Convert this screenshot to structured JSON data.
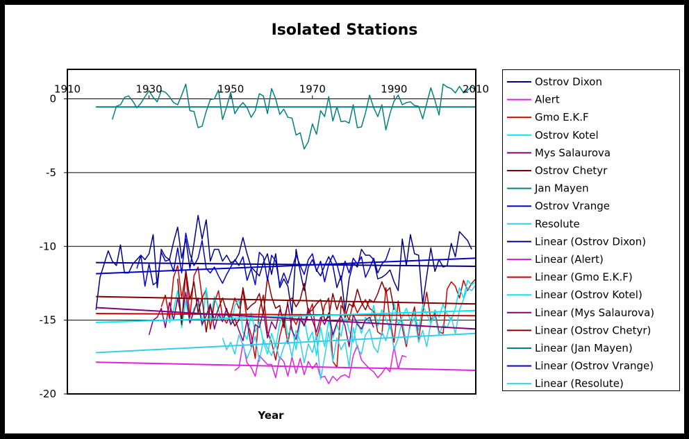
{
  "chart_data": {
    "type": "line",
    "title": "Isolated Stations",
    "xlabel": "Year",
    "ylabel": "",
    "xlim": [
      1910,
      2010
    ],
    "ylim": [
      -20,
      2
    ],
    "x_ticks": [
      1910,
      1930,
      1950,
      1970,
      1990,
      2010
    ],
    "x_tick_labels": [
      "1910",
      "1930",
      "1950",
      "1970",
      "1990",
      "2010"
    ],
    "y_ticks": [
      0,
      -5,
      -10,
      -15,
      -20
    ],
    "y_tick_labels": [
      "0",
      "-5",
      "-10",
      "-15",
      "-20"
    ],
    "grid": "horizontal",
    "legend_position": "right",
    "trend_x": [
      1917,
      2010
    ],
    "series": [
      {
        "name": "Ostrov Dixon",
        "color": "#000080",
        "start": 1917,
        "values": [
          -14.3,
          -12.1,
          -11.2,
          -10.3,
          -11.0,
          -11.3,
          -9.9,
          -11.8,
          -11.8,
          -11.2,
          -10.9,
          -10.6,
          -10.9,
          -10.5,
          -9.2,
          -12.8,
          -10.2,
          -10.7,
          -10.9,
          -9.7,
          -8.7,
          -10.8,
          -9.5,
          -11.5,
          -9.8,
          -7.9,
          -9.5,
          -8.2,
          -11.0,
          -10.2,
          -10.2,
          -11.0,
          -10.6,
          -11.1,
          -11.0,
          -10.5,
          -9.4,
          -10.5,
          -11.4,
          -11.7,
          -12.0,
          -11.1,
          -10.5,
          -11.9,
          -10.5,
          -12.8,
          -12.2,
          -12.7,
          -14.6,
          -10.2,
          -11.7,
          -13.0,
          -11.4,
          -10.9,
          -11.6,
          -12.0,
          -11.3,
          -10.7,
          -11.3,
          -12.8,
          -12.0,
          -14.4,
          -12.2,
          -11.1,
          -11.4,
          -10.2,
          -10.6,
          -10.6,
          -10.9,
          -12.2,
          -12.1,
          -11.9,
          -11.6,
          -12.4,
          -13.0,
          -9.5,
          -11.3,
          -9.2,
          -10.5,
          -10.6,
          -13.9,
          -12.0,
          -10.1,
          -11.7,
          -10.9,
          -11.4,
          -11.3,
          -9.8,
          -10.7,
          -9.0,
          -9.3,
          -9.6,
          -10.2
        ],
        "trend_name": "Linear (Ostrov Dixon)",
        "trend": [
          -11.1,
          -11.35
        ]
      },
      {
        "name": "Alert",
        "color": "#E020E0",
        "start": 1951,
        "values": [
          -18.4,
          -18.2,
          -16.6,
          -17.9,
          -18.2,
          -18.8,
          -17.4,
          -17.7,
          -18.0,
          -18.0,
          -18.9,
          -17.5,
          -17.8,
          -18.8,
          -17.5,
          -18.6,
          -17.6,
          -18.7,
          -17.8,
          -18.3,
          -17.9,
          -18.9,
          -18.8,
          -19.3,
          -18.8,
          -19.1,
          -18.8,
          -18.7,
          -18.9,
          -17.4,
          -16.7,
          -17.7,
          -18.0,
          -18.3,
          -18.5,
          -18.9,
          -18.6,
          -18.2,
          -18.5,
          -16.8,
          -18.3,
          -17.4,
          -17.5
        ],
        "trend_name": "Linear (Alert)",
        "trend": [
          -17.85,
          -18.4
        ]
      },
      {
        "name": "Gmo E.K.F",
        "color": "#CC0000",
        "start": 1933,
        "values": [
          -14.1,
          -13.3,
          -14.9,
          -12.1,
          -11.3,
          -13.5,
          -11.8,
          -14.8,
          -12.0,
          -11.4,
          -13.5,
          -12.9,
          -15.6,
          -13.8,
          -13.0,
          -14.8,
          -15.2,
          -14.6,
          -13.5,
          -14.2,
          -13.0,
          -15.0,
          -16.0,
          -17.6,
          -14.3,
          -13.3,
          -15.8,
          -16.5,
          -17.7,
          -16.1,
          -15.0,
          -16.6,
          -14.8,
          -15.3,
          -14.6,
          -15.4,
          -14.6,
          -13.9,
          -16.3,
          -15.2,
          -14.0,
          -13.5,
          -17.8,
          -18.2,
          -14.0,
          -14.4,
          -15.0,
          -13.8,
          -14.5,
          -14.0,
          -13.6,
          -14.2,
          -14.4,
          -15.8,
          -16.0,
          -12.8,
          -15.0,
          -16.5,
          -13.7,
          -15.5,
          -16.8,
          -15.2,
          -14.1,
          -16.3,
          -14.5,
          -13.1,
          -15.0,
          -14.5,
          -15.8,
          -15.9,
          -12.9,
          -12.4,
          -12.7,
          -13.5,
          -12.3,
          -13.0,
          -12.5,
          -12.2
        ],
        "trend_name": "Linear (Gmo E.K.F)",
        "trend": [
          -14.55,
          -14.7
        ]
      },
      {
        "name": "Ostrov Kotel",
        "color": "#00E8F0",
        "start": 1935,
        "values": [
          -15.2,
          -14.3,
          -13.0,
          -15.5,
          -13.7,
          -15.2,
          -14.2,
          -13.9,
          -15.4,
          -12.8,
          -15.0,
          -13.4,
          -14.3,
          -15.1,
          -14.5,
          -15.3,
          -14.0,
          -13.6,
          -15.8,
          -16.3,
          -14.5,
          -15.8,
          -15.1,
          -16.5,
          -17.3,
          -15.9,
          -16.8,
          -15.2,
          -14.6,
          -16.0,
          -15.5,
          -17.0,
          -15.1,
          -14.9,
          -16.4,
          -15.8,
          -17.4,
          -15.5,
          -16.8,
          -15.0,
          -16.2,
          -15.3,
          -16.1,
          -14.6,
          -15.7,
          -16.5,
          -15.0,
          -15.9,
          -14.8,
          -15.2,
          -14.0,
          -15.4,
          -14.3,
          -14.9,
          -15.6,
          -13.8,
          -15.3,
          -14.8,
          -14.2,
          -15.0,
          -14.5,
          -15.7,
          -14.0,
          -14.6,
          -15.2,
          -14.3,
          -14.8,
          -13.9,
          -14.6,
          -15.0,
          -14.2,
          -12.8,
          -13.5,
          -12.3,
          -12.6,
          -12.4
        ],
        "trend_name": "Linear (Ostrov Kotel)",
        "trend": [
          -15.15,
          -14.35
        ]
      },
      {
        "name": "Mys Salaurova",
        "color": "#800080",
        "start": 1930,
        "values": [
          -16.0,
          -15.0,
          -14.8,
          -14.2,
          -15.5,
          -13.8,
          -15.0,
          -13.5,
          -14.9,
          -13.1,
          -15.2,
          -14.4,
          -13.5,
          -15.3,
          -14.7,
          -13.9,
          -15.6,
          -14.6,
          -15.1,
          -14.2,
          -15.3,
          -14.9,
          -15.7,
          -16.4,
          -15.0,
          -16.8,
          -15.3,
          -15.5,
          -14.4,
          -16.2,
          -15.1,
          -15.6,
          -14.3,
          -15.0,
          -13.9,
          -15.7,
          -16.3,
          -14.9,
          -15.4,
          -14.2,
          -15.0,
          -15.8,
          -14.8,
          -15.3,
          -14.5,
          -16.0,
          -15.2,
          -14.7,
          -15.4,
          -16.8,
          -14.6,
          -15.3,
          -15.6,
          -15.0,
          -14.8,
          -15.5
        ],
        "trend_name": "Linear (Mys Salaurova)",
        "trend": [
          -14.15,
          -15.6
        ]
      },
      {
        "name": "Ostrov Chetyr",
        "color": "#800000",
        "start": 1937,
        "values": [
          -12.2,
          -15.3,
          -11.6,
          -13.6,
          -12.4,
          -14.5,
          -13.5,
          -15.8,
          -14.0,
          -15.0,
          -14.2,
          -13.5,
          -14.4,
          -14.7,
          -15.4,
          -15.0,
          -12.8,
          -14.3,
          -14.0,
          -13.8,
          -13.2,
          -14.6,
          -12.1,
          -13.4,
          -14.2,
          -14.0,
          -15.5,
          -13.7,
          -13.5,
          -14.1,
          -13.6,
          -12.5,
          -14.5,
          -14.3,
          -13.9,
          -13.6,
          -15.0,
          -14.8,
          -13.2,
          -14.3,
          -13.4,
          -14.8,
          -13.9,
          -14.1,
          -12.9,
          -13.8,
          -14.3,
          -13.6,
          -13.8,
          -13.2,
          -12.4,
          -13.1,
          -12.8,
          -14.3
        ],
        "trend_name": "Linear (Ostrov Chetyr)",
        "trend": [
          -13.4,
          -13.9
        ]
      },
      {
        "name": "Jan Mayen",
        "color": "#008080",
        "start": 1921,
        "values": [
          -1.4,
          -0.5,
          -0.4,
          0.1,
          0.2,
          -0.15,
          -0.6,
          -0.3,
          0.15,
          0.55,
          0.1,
          -0.2,
          0.55,
          0.45,
          0.15,
          -0.25,
          -0.4,
          0.25,
          1.0,
          -0.8,
          -0.85,
          -1.95,
          -1.85,
          -0.85,
          -0.05,
          0.0,
          0.6,
          -1.4,
          -0.55,
          0.45,
          -1.0,
          -0.55,
          -0.25,
          -0.6,
          -1.25,
          -0.8,
          0.35,
          0.2,
          -1.0,
          0.7,
          0.0,
          -1.05,
          -0.7,
          -1.25,
          -1.3,
          -2.45,
          -2.3,
          -3.4,
          -2.9,
          -1.7,
          -2.4,
          -0.8,
          -1.2,
          0.15,
          -1.5,
          -0.55,
          -1.55,
          -1.5,
          -1.65,
          -0.4,
          -1.95,
          -1.9,
          -0.95,
          0.25,
          -0.6,
          -1.2,
          -0.4,
          -2.1,
          -1.0,
          -0.15,
          0.25,
          -0.4,
          -0.25,
          -0.2,
          -0.45,
          -0.5,
          -1.35,
          -0.3,
          0.75,
          -0.1,
          -1.1,
          1.0,
          0.8,
          0.7,
          0.4,
          0.85,
          0.4,
          0.6,
          0.8,
          0.6
        ],
        "trend_name": "Linear (Jan Mayen)",
        "trend": [
          -0.55,
          -0.55
        ]
      },
      {
        "name": "Ostrov Vrange",
        "color": "#0000CC",
        "start": 1927,
        "values": [
          -11.5,
          -10.6,
          -12.7,
          -11.2,
          -12.6,
          -12.4,
          -10.4,
          -11.0,
          -10.9,
          -11.7,
          -10.1,
          -11.8,
          -9.1,
          -10.5,
          -11.3,
          -10.8,
          -9.6,
          -11.5,
          -11.8,
          -11.4,
          -12.0,
          -12.5,
          -11.9,
          -11.4,
          -10.9,
          -11.3,
          -10.7,
          -12.3,
          -11.5,
          -12.6,
          -10.4,
          -10.7,
          -12.3,
          -10.6,
          -11.0,
          -12.6,
          -11.8,
          -12.5,
          -11.5,
          -10.6,
          -11.3,
          -11.9,
          -10.9,
          -10.5,
          -11.7,
          -11.0,
          -12.4,
          -11.2,
          -10.6,
          -11.2,
          -12.3,
          -11.0,
          -11.8,
          -10.8,
          -11.2,
          -10.7,
          -12.1,
          -11.5,
          -10.8,
          -11.8,
          -11.2,
          -10.9,
          -10.1
        ],
        "trend_name": "Linear (Ostrov Vrange)",
        "trend": [
          -11.85,
          -10.8
        ]
      },
      {
        "name": "Resolute",
        "color": "#33CCEE",
        "start": 1948,
        "values": [
          -16.2,
          -17.0,
          -16.5,
          -17.3,
          -16.0,
          -16.7,
          -17.6,
          -16.9,
          -16.1,
          -17.8,
          -16.3,
          -16.9,
          -17.4,
          -16.6,
          -17.7,
          -16.8,
          -16.2,
          -17.5,
          -15.7,
          -16.4,
          -17.9,
          -16.6,
          -17.2,
          -16.0,
          -19.0,
          -17.5,
          -15.8,
          -17.8,
          -16.2,
          -17.0,
          -16.5,
          -18.2,
          -15.5,
          -16.9,
          -17.3,
          -16.0,
          -15.6,
          -16.8,
          -17.2,
          -15.8,
          -16.4,
          -15.2,
          -17.0,
          -16.2,
          -15.0,
          -16.6,
          -15.4,
          -14.8,
          -16.5,
          -15.7,
          -16.8,
          -15.2,
          -14.7,
          -16.0,
          -15.3,
          -15.5,
          -14.8,
          -15.9,
          -14.3,
          -13.6,
          -12.8,
          -13.0,
          -12.6
        ],
        "trend_name": "Linear (Resolute)",
        "trend": [
          -17.2,
          -15.9
        ]
      }
    ]
  }
}
